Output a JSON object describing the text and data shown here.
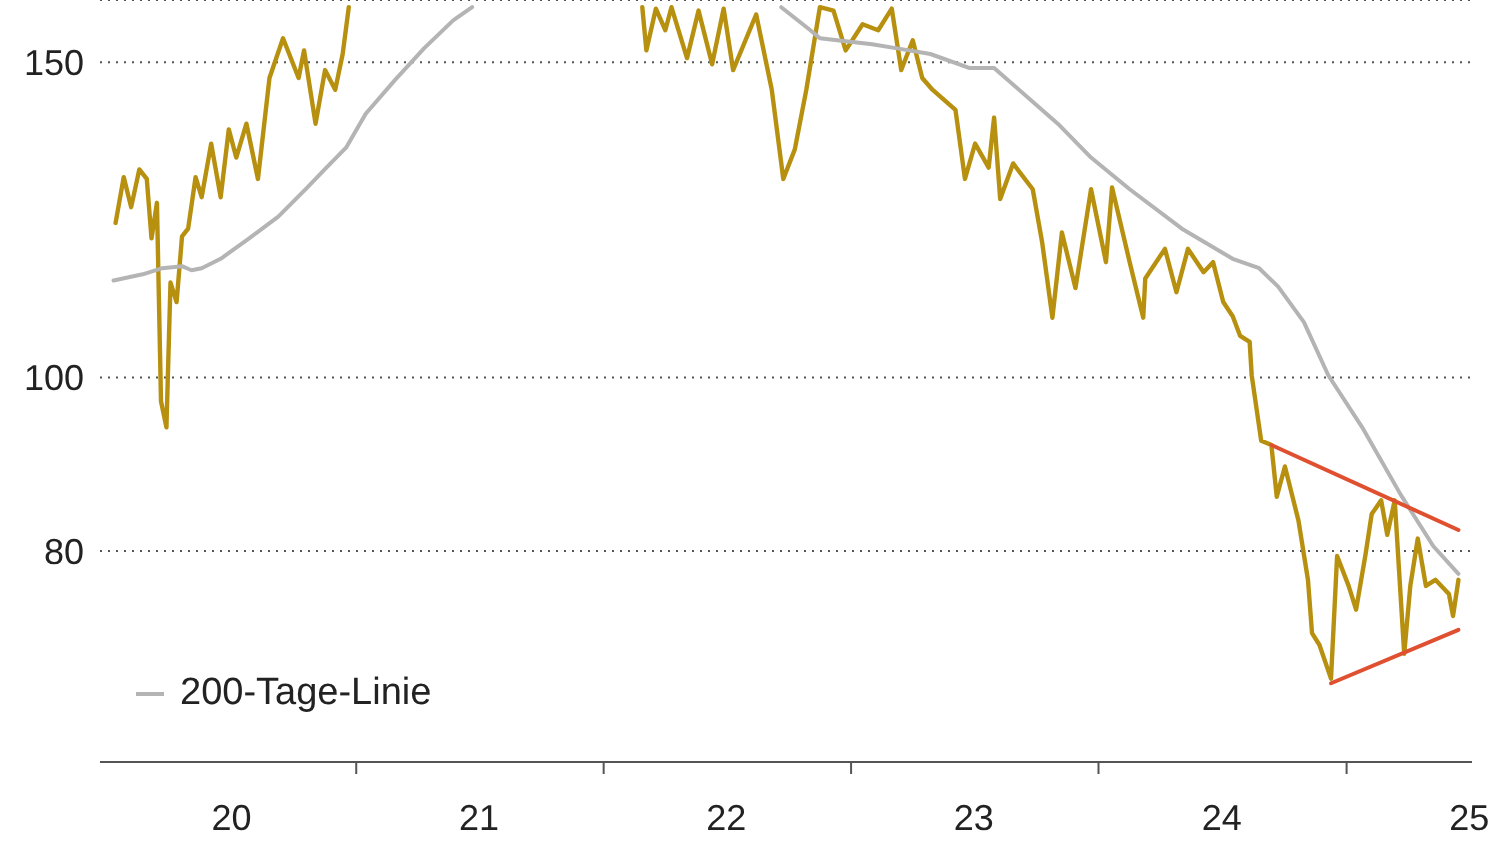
{
  "chart_data": {
    "type": "line",
    "log": "y",
    "grid": "y",
    "legend": "bottom left",
    "marker": "none",
    "line_style": "solid",
    "xlim": [
      "2019-12-20",
      "2025-07-05"
    ],
    "xticks": [
      {
        "value": "2021",
        "label": null
      },
      {
        "value": "2022",
        "label": null
      },
      {
        "value": "2023",
        "label": null
      },
      {
        "value": "2024",
        "label": null
      },
      {
        "value": "2025",
        "label": null
      },
      {
        "value": "2020-07-01",
        "label": "20"
      },
      {
        "value": "2021-07-01",
        "label": "21"
      },
      {
        "value": "2022-07-01",
        "label": "22"
      },
      {
        "value": "2023-07-01",
        "label": "23"
      },
      {
        "value": "2024-07-01",
        "label": "24"
      },
      {
        "value": "2025-07-01",
        "label": "25"
      }
    ],
    "ylim": [
      61,
      162.5
    ],
    "yticks": [
      80,
      100,
      150
    ],
    "series": [
      {
        "color": "#b8900f",
        "x": [
          "2020-01-12",
          "2020-01-24",
          "2020-02-04",
          "2020-02-16",
          "2020-02-27",
          "2020-03-05",
          "2020-03-13",
          "2020-03-19",
          "2020-03-27",
          "2020-04-02",
          "2020-04-11",
          "2020-04-19",
          "2020-04-28",
          "2020-05-09",
          "2020-05-18",
          "2020-06-01",
          "2020-06-15",
          "2020-06-27",
          "2020-07-08",
          "2020-07-23",
          "2020-08-09",
          "2020-08-26",
          "2020-09-15",
          "2020-10-08",
          "2020-10-16",
          "2020-11-02",
          "2020-11-16",
          "2020-12-01",
          "2020-12-12",
          "2020-12-21",
          "2021-08-08",
          "2022-02-27",
          "2022-03-05",
          "2022-03-19",
          "2022-04-02",
          "2022-04-11",
          "2022-05-04",
          "2022-05-21",
          "2022-06-10",
          "2022-06-27",
          "2022-07-11",
          "2022-08-14",
          "2022-09-06",
          "2022-09-23",
          "2022-10-10",
          "2022-10-27",
          "2022-11-16",
          "2022-12-06",
          "2022-12-24",
          "2023-01-18",
          "2023-02-10",
          "2023-03-02",
          "2023-03-16",
          "2023-04-02",
          "2023-04-16",
          "2023-05-01",
          "2023-06-04",
          "2023-06-18",
          "2023-07-03",
          "2023-07-23",
          "2023-07-31",
          "2023-08-09",
          "2023-08-28",
          "2023-09-26",
          "2023-10-10",
          "2023-10-25",
          "2023-11-08",
          "2023-11-28",
          "2023-12-21",
          "2024-01-12",
          "2024-01-21",
          "2024-02-16",
          "2024-03-07",
          "2024-03-10",
          "2024-04-08",
          "2024-04-25",
          "2024-05-12",
          "2024-06-04",
          "2024-06-18",
          "2024-07-03",
          "2024-07-17",
          "2024-07-28",
          "2024-08-11",
          "2024-08-14",
          "2024-08-28",
          "2024-09-12",
          "2024-09-20",
          "2024-10-02",
          "2024-10-22",
          "2024-11-05",
          "2024-11-11",
          "2024-11-22",
          "2024-12-09",
          "2024-12-18",
          "2025-01-04",
          "2025-01-15",
          "2025-01-29",
          "2025-02-07",
          "2025-02-21",
          "2025-03-02",
          "2025-03-13",
          "2025-03-27",
          "2025-04-05",
          "2025-04-16",
          "2025-04-28",
          "2025-05-12",
          "2025-06-01",
          "2025-06-07",
          "2025-06-15"
        ],
        "values": [
          122.0,
          129.4,
          124.5,
          130.7,
          129.1,
          119.6,
          125.2,
          97.0,
          93.8,
          113.0,
          110.2,
          119.9,
          121.1,
          129.4,
          126.1,
          135.1,
          126.1,
          137.6,
          132.7,
          138.6,
          129.1,
          147.0,
          154.7,
          147.0,
          152.3,
          138.6,
          148.5,
          144.8,
          151.6,
          161,
          null,
          161,
          152.3,
          160.7,
          156.3,
          161,
          150.8,
          160.3,
          149.6,
          160.7,
          148.5,
          159.5,
          144.8,
          129.1,
          134.1,
          144.8,
          161,
          160.3,
          152.3,
          157.5,
          156.3,
          160.7,
          148.5,
          154.3,
          147.0,
          144.8,
          141.1,
          129.1,
          135.1,
          131.0,
          139.7,
          125.8,
          131.7,
          127.4,
          118.9,
          108.0,
          120.5,
          112.2,
          127.4,
          116.0,
          127.7,
          116.0,
          108.0,
          113.6,
          118.0,
          111.6,
          118.0,
          114.5,
          116.0,
          110.2,
          108.2,
          105.5,
          104.7,
          100.3,
          92.2,
          91.7,
          85.8,
          89.2,
          83.2,
          77.1,
          72.0,
          70.9,
          67.9,
          79.5,
          76.5,
          74.2,
          79.7,
          83.9,
          85.4,
          81.7,
          85.4,
          70.1,
          76.5,
          81.3,
          76.5,
          77.1,
          75.7,
          73.6,
          77.1
        ]
      },
      {
        "name": "200-Tage-Linie",
        "color": "#b4b4b4",
        "x": [
          "2020-01-09",
          "2020-02-21",
          "2020-03-21",
          "2020-04-19",
          "2020-05-03",
          "2020-05-18",
          "2020-06-15",
          "2020-07-27",
          "2020-09-08",
          "2020-10-21",
          "2020-11-18",
          "2020-12-17",
          "2021-01-15",
          "2021-02-27",
          "2021-04-11",
          "2021-05-24",
          "2021-06-21",
          "2022-01-01",
          "2022-09-20",
          "2022-11-02",
          "2022-11-16",
          "2023-02-01",
          "2023-03-10",
          "2023-04-28",
          "2023-06-24",
          "2023-07-31",
          "2023-11-02",
          "2023-12-21",
          "2024-02-16",
          "2024-05-03",
          "2024-07-17",
          "2024-08-25",
          "2024-09-22",
          "2024-10-30",
          "2024-12-05",
          "2025-01-24",
          "2025-03-22",
          "2025-05-09",
          "2025-06-15"
        ],
        "values": [
          113.3,
          114.2,
          115.1,
          115.4,
          114.8,
          115.1,
          116.5,
          119.6,
          123.0,
          127.7,
          131.0,
          134.4,
          140.4,
          146.6,
          152.7,
          158.3,
          161,
          null,
          161,
          156.3,
          154.7,
          153.5,
          152.7,
          151.6,
          148.9,
          148.9,
          138.6,
          132.7,
          127.4,
          121.1,
          116.5,
          115.1,
          112.4,
          107.4,
          100.3,
          93.8,
          86.0,
          80.5,
          77.7
        ]
      },
      {
        "color": "#e05030",
        "x": [
          "2024-09-12",
          "2025-06-15"
        ],
        "values": [
          91.7,
          82.2
        ]
      },
      {
        "color": "#e05030",
        "x": [
          "2024-12-09",
          "2025-06-15"
        ],
        "values": [
          67.5,
          72.3
        ]
      }
    ]
  }
}
